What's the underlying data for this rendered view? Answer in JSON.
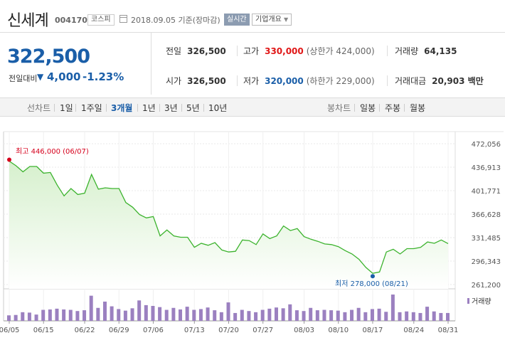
{
  "header": {
    "name": "신세계",
    "code": "004170",
    "market": "코스피",
    "date": "2018.09.05 기준(장마감)",
    "realtime": "실시간",
    "company_info": "기업개요"
  },
  "price": {
    "current": "322,500",
    "diff_label": "전일대비",
    "diff_arrow": "▼",
    "diff": "4,000",
    "rate": "-1.23%"
  },
  "stats": {
    "prev_label": "전일",
    "prev_val": "326,500",
    "high_label": "고가",
    "high_val": "330,000",
    "high_sub": "(상한가 424,000)",
    "volume_label": "거래량",
    "volume_val": "64,135",
    "open_label": "시가",
    "open_val": "326,500",
    "low_label": "저가",
    "low_val": "320,000",
    "low_sub": "(하한가 229,000)",
    "amount_label": "거래대금",
    "amount_val": "20,903 백만"
  },
  "tabs": {
    "line_chart": "선차트",
    "periods": [
      "1일",
      "1주일",
      "3개월",
      "1년",
      "3년",
      "5년",
      "10년"
    ],
    "active_period": "3개월",
    "candle_chart": "봉차트",
    "candles": [
      "일봉",
      "주봉",
      "월봉"
    ]
  },
  "colors": {
    "line": "#3cb32e",
    "fill_top": "#d6f0cd",
    "volume": "#9b80c0",
    "high_marker": "#d6001c",
    "low_marker": "#1a5ea8"
  },
  "chart_data": {
    "type": "area",
    "ylim": [
      261200,
      472056
    ],
    "y_ticks": [
      "472,056",
      "436,913",
      "401,771",
      "366,628",
      "331,485",
      "296,343",
      "261,200"
    ],
    "x_ticks": [
      "06/05",
      "06/15",
      "06/22",
      "06/29",
      "07/06",
      "07/13",
      "07/20",
      "07/27",
      "08/03",
      "08/10",
      "08/17",
      "08/24",
      "08/31"
    ],
    "max_label": "최고 446,000 (06/07)",
    "min_label": "최저 278,000 (08/21)",
    "volume_label": "거래량",
    "series": [
      {
        "values": [
          446000,
          439000,
          430000,
          438000,
          438000,
          428000,
          429000,
          410000,
          394000,
          405000,
          396000,
          398000,
          426000,
          404000,
          406000,
          405000,
          405000,
          384000,
          377000,
          366000,
          361000,
          363000,
          334000,
          343000,
          334000,
          332000,
          332000,
          317000,
          323000,
          320000,
          324000,
          313000,
          310000,
          311000,
          328000,
          327000,
          321000,
          337000,
          330000,
          334000,
          349000,
          342000,
          345000,
          333000,
          329000,
          326000,
          322000,
          321000,
          318000,
          312000,
          307000,
          299000,
          287000,
          278000,
          280000,
          310000,
          314000,
          307000,
          315000,
          315000,
          317000,
          325000,
          323000,
          328000,
          322500
        ]
      },
      {
        "name": "거래량",
        "values": [
          14,
          15,
          22,
          21,
          16,
          28,
          29,
          31,
          29,
          28,
          25,
          27,
          64,
          33,
          49,
          37,
          30,
          26,
          32,
          52,
          40,
          38,
          35,
          28,
          33,
          29,
          36,
          28,
          30,
          34,
          27,
          22,
          47,
          20,
          28,
          25,
          22,
          28,
          31,
          34,
          32,
          42,
          27,
          25,
          33,
          27,
          28,
          27,
          26,
          22,
          28,
          33,
          22,
          30,
          31,
          23,
          67,
          22,
          24,
          22,
          20,
          36,
          24,
          20,
          20
        ]
      }
    ]
  }
}
